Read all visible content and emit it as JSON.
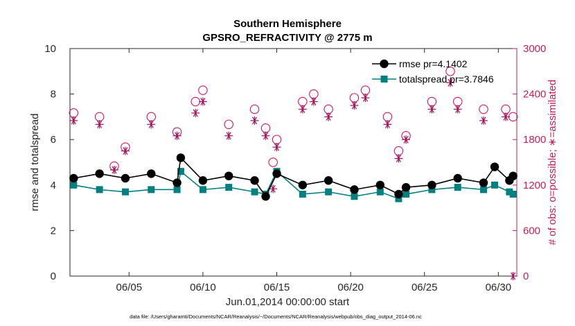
{
  "chart_data": {
    "type": "line",
    "title_line1": "Southern Hemisphere",
    "title_line2": "GPSRO_REFRACTIVITY @ 2775 m",
    "xlabel": "Jun.01,2014 00:00:00 start",
    "ylabel_left": "rmse and totalspread",
    "ylabel_right": "# of obs: o=possible; ∗=assimilated",
    "footnote": "data file: /Users/gharamti/Documents/NCAR/Reanalysis/~/Documents/NCAR/Reanalysis/webpub/obs_diag_output_2014-06.nc",
    "x_range_days": [
      1,
      31.25
    ],
    "ylim_left": [
      0,
      10
    ],
    "ylim_right": [
      0,
      3000
    ],
    "xticks": [
      {
        "day": 5,
        "label": "06/05"
      },
      {
        "day": 10,
        "label": "06/10"
      },
      {
        "day": 15,
        "label": "06/15"
      },
      {
        "day": 20,
        "label": "06/20"
      },
      {
        "day": 25,
        "label": "06/25"
      },
      {
        "day": 30,
        "label": "06/30"
      }
    ],
    "yticks_left": [
      {
        "value": 0,
        "label": "0"
      },
      {
        "value": 2,
        "label": "2"
      },
      {
        "value": 4,
        "label": "4"
      },
      {
        "value": 6,
        "label": "6"
      },
      {
        "value": 8,
        "label": "8"
      },
      {
        "value": 10,
        "label": "10"
      }
    ],
    "yticks_right": [
      {
        "value": 0,
        "label": "0"
      },
      {
        "value": 600,
        "label": "600"
      },
      {
        "value": 1200,
        "label": "1200"
      },
      {
        "value": 1800,
        "label": "1800"
      },
      {
        "value": 2400,
        "label": "2400"
      },
      {
        "value": 3000,
        "label": "3000"
      }
    ],
    "legend": [
      {
        "series": "rmse",
        "label": "rmse pr=4.1402"
      },
      {
        "series": "totalspread",
        "label": "totalspread pr=3.7846"
      }
    ],
    "colors": {
      "rmse": "#000000",
      "totalspread": "#008080",
      "possible": "#d6125e",
      "assimilated": "#a0105a",
      "axis": "#262626",
      "right_axis": "#c51b5a"
    },
    "series": [
      {
        "name": "rmse",
        "axis": "left",
        "x": [
          1.25,
          3.0,
          4.75,
          6.5,
          8.25,
          8.5,
          10.0,
          11.75,
          13.5,
          14.25,
          15.0,
          16.75,
          18.5,
          20.25,
          22.0,
          23.25,
          23.75,
          25.5,
          27.25,
          29.0,
          29.75,
          30.75,
          31.0
        ],
        "values": [
          4.3,
          4.5,
          4.3,
          4.5,
          4.1,
          5.2,
          4.2,
          4.4,
          4.2,
          3.5,
          4.5,
          4.0,
          4.2,
          3.8,
          4.0,
          3.6,
          3.9,
          4.0,
          4.3,
          4.1,
          4.8,
          4.2,
          4.4
        ]
      },
      {
        "name": "totalspread",
        "axis": "left",
        "x": [
          1.25,
          3.0,
          4.75,
          6.5,
          8.25,
          8.5,
          10.0,
          11.75,
          13.5,
          14.25,
          15.0,
          16.75,
          18.5,
          20.25,
          22.0,
          23.25,
          23.75,
          25.5,
          27.25,
          29.0,
          29.75,
          30.75,
          31.0
        ],
        "values": [
          4.0,
          3.8,
          3.7,
          3.8,
          3.8,
          4.6,
          3.8,
          3.9,
          3.7,
          3.6,
          4.6,
          3.6,
          3.7,
          3.5,
          3.7,
          3.4,
          3.6,
          3.8,
          3.9,
          3.8,
          4.0,
          3.7,
          3.6
        ]
      },
      {
        "name": "possible",
        "axis": "right",
        "marker": "circle",
        "x": [
          1.25,
          3.0,
          4.0,
          4.75,
          6.5,
          8.25,
          9.5,
          10.0,
          11.75,
          13.5,
          14.25,
          14.75,
          15.0,
          16.75,
          17.5,
          18.5,
          20.25,
          21.0,
          22.5,
          23.25,
          23.75,
          25.5,
          26.75,
          27.25,
          29.0,
          30.5,
          31.0
        ],
        "values": [
          2150,
          2100,
          1450,
          1700,
          2100,
          1900,
          2300,
          2450,
          2000,
          2200,
          1950,
          1500,
          1800,
          2300,
          2400,
          2200,
          2350,
          2450,
          2100,
          1650,
          1850,
          2300,
          2700,
          2300,
          2200,
          2200,
          2100
        ]
      },
      {
        "name": "assimilated",
        "axis": "right",
        "marker": "asterisk",
        "x": [
          1.25,
          3.0,
          4.0,
          4.75,
          6.5,
          8.25,
          9.5,
          10.0,
          11.75,
          13.5,
          14.25,
          14.75,
          15.0,
          16.75,
          17.5,
          18.5,
          20.25,
          21.0,
          22.5,
          23.25,
          23.75,
          25.5,
          26.75,
          27.25,
          29.0,
          30.5,
          31.0
        ],
        "values": [
          2050,
          2000,
          1400,
          1650,
          2000,
          1850,
          2150,
          2300,
          1850,
          2050,
          1850,
          1150,
          1700,
          2200,
          2300,
          2100,
          2250,
          2350,
          2000,
          1550,
          1800,
          2200,
          2550,
          2200,
          2050,
          2100,
          0
        ]
      }
    ]
  }
}
